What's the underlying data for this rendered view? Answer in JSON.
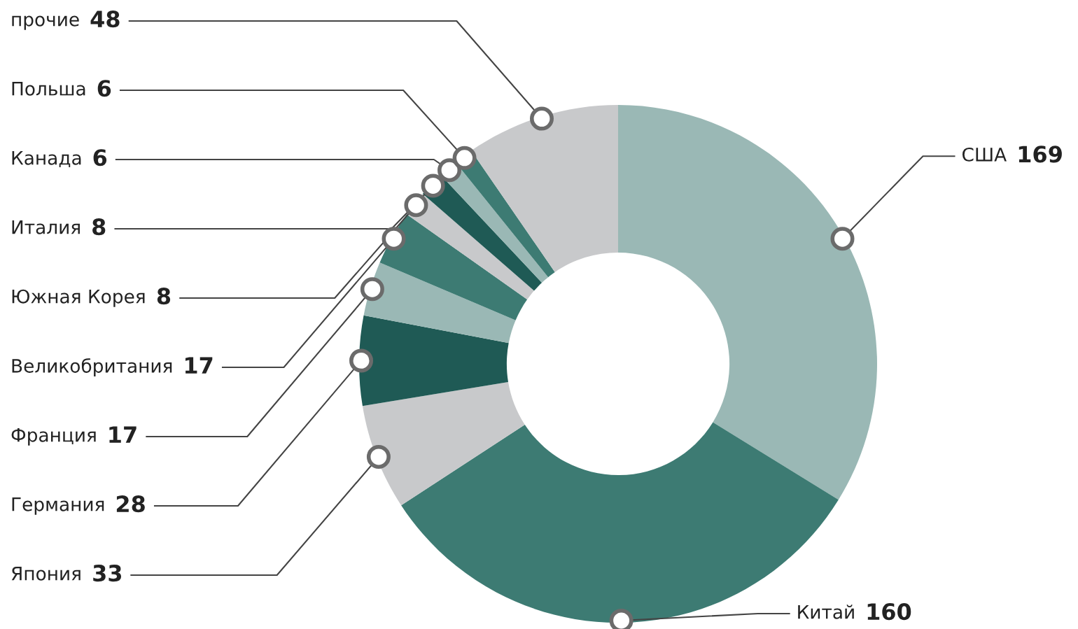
{
  "chart_data": {
    "type": "donut",
    "categories": [
      "США",
      "Китай",
      "Япония",
      "Германия",
      "Франция",
      "Великобритания",
      "Южная Корея",
      "Италия",
      "Канада",
      "Польша",
      "прочие"
    ],
    "values": [
      169,
      160,
      33,
      28,
      17,
      17,
      8,
      8,
      6,
      6,
      48
    ],
    "colors": [
      "#9ab8b5",
      "#3d7b73",
      "#c8c9cb",
      "#1f5a55",
      "#9ab8b5",
      "#3d7b73",
      "#c8c9cb",
      "#1f5a55",
      "#9ab8b5",
      "#3d7b73",
      "#c8c9cb"
    ],
    "data_labels": true
  }
}
